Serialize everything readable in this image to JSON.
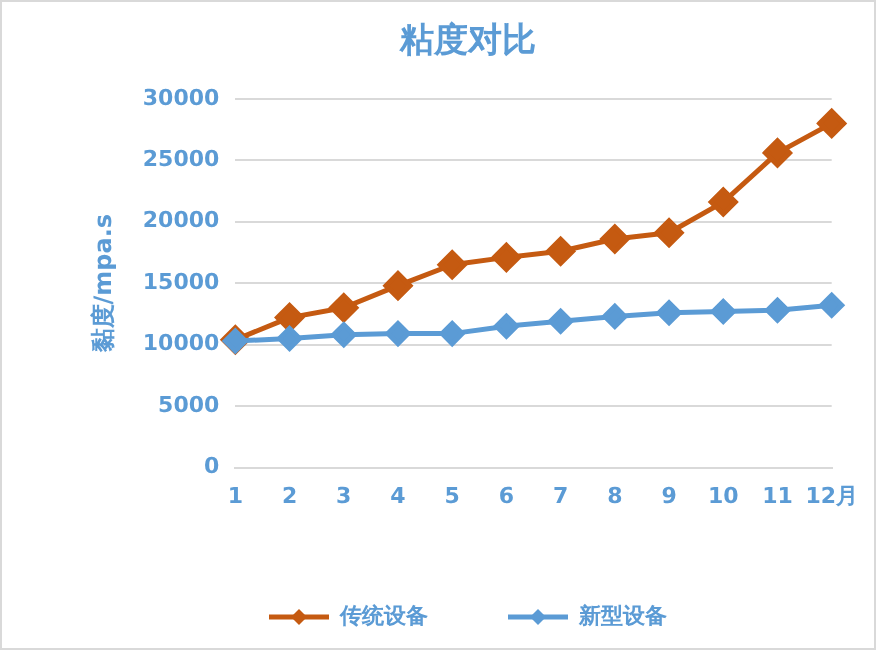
{
  "chart_data": {
    "type": "line",
    "title": "粘度对比",
    "ylabel": "黏度/mpa.s",
    "categories": [
      "1",
      "2",
      "3",
      "4",
      "5",
      "6",
      "7",
      "8",
      "9",
      "10",
      "11",
      "12月"
    ],
    "series": [
      {
        "name": "传统设备",
        "color": "#c55a11",
        "values": [
          10400,
          12200,
          13000,
          14800,
          16500,
          17100,
          17600,
          18600,
          19100,
          21600,
          25600,
          28000
        ]
      },
      {
        "name": "新型设备",
        "color": "#5b9bd5",
        "values": [
          10300,
          10500,
          10800,
          10900,
          10900,
          11500,
          11900,
          12300,
          12600,
          12700,
          12800,
          13200
        ]
      }
    ],
    "ylim": [
      0,
      30000
    ],
    "yticks": [
      0,
      5000,
      10000,
      15000,
      20000,
      25000,
      30000
    ],
    "grid": "y",
    "legend": "bottom",
    "marker": "diamond",
    "line_style": "solid"
  }
}
